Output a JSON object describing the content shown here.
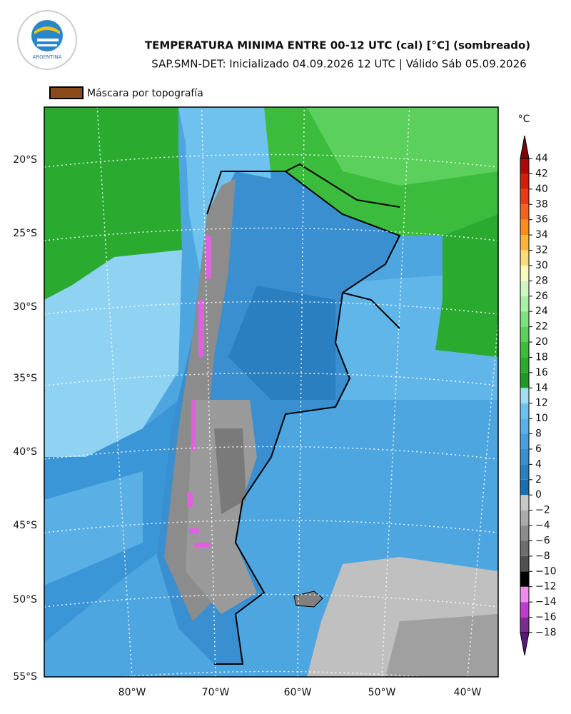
{
  "header": {
    "title": "TEMPERATURA MINIMA ENTRE 00-12 UTC (cal) [°C] (sombreado)",
    "subtitle": "SAP.SMN-DET: Inicializado 04.09.2026 12 UTC | Válido Sáb 05.09.2026",
    "logo_text": "ARGENTINA"
  },
  "legend": {
    "label": "Máscara por topografía",
    "color": "#8b4a1c"
  },
  "map": {
    "lat_labels": [
      "20°S",
      "25°S",
      "30°S",
      "35°S",
      "40°S",
      "45°S",
      "50°S",
      "55°S"
    ],
    "lon_labels": [
      "80°W",
      "70°W",
      "60°W",
      "50°W",
      "40°W"
    ]
  },
  "colorbar": {
    "unit": "°C",
    "ticks": [
      {
        "value": -18,
        "label": "−18"
      },
      {
        "value": -16,
        "label": "−16"
      },
      {
        "value": -14,
        "label": "−14"
      },
      {
        "value": -12,
        "label": "−12"
      },
      {
        "value": -10,
        "label": "−10"
      },
      {
        "value": -8,
        "label": "−8"
      },
      {
        "value": -6,
        "label": "−6"
      },
      {
        "value": -4,
        "label": "−4"
      },
      {
        "value": -2,
        "label": "−2"
      },
      0,
      2,
      4,
      6,
      8,
      10,
      12,
      14,
      16,
      18,
      20,
      22,
      24,
      26,
      28,
      30,
      32,
      34,
      36,
      38,
      40,
      42,
      44
    ],
    "colors": [
      "#7b2d8e",
      "#c03cd0",
      "#f08cf0",
      "#000000",
      "#505050",
      "#6e6e6e",
      "#8c8c8c",
      "#aaaaaa",
      "#c8c8c8",
      "#1c6fae",
      "#2a7fc0",
      "#3a8fd0",
      "#4a9fdc",
      "#5cb0e6",
      "#70c2ee",
      "#a4dcf5",
      "#1e9a28",
      "#2aab30",
      "#3cbc3c",
      "#5cd05c",
      "#80e080",
      "#a8f0a8",
      "#d0f8c0",
      "#fafabe",
      "#fcdc78",
      "#fcb43c",
      "#fa8c1e",
      "#f0641e",
      "#e63c14",
      "#d01e0a",
      "#aa0a0a"
    ],
    "extend_colors": [
      "#5a1a7a",
      "#7a0505"
    ]
  }
}
